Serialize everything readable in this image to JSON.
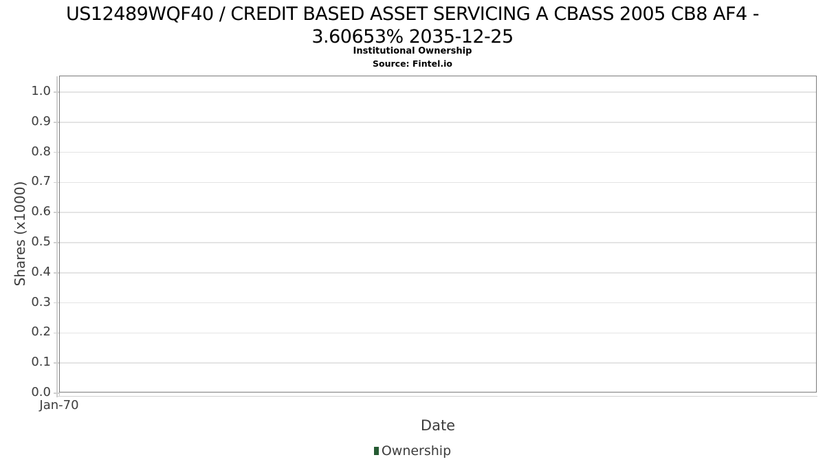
{
  "header": {
    "title": "US12489WQF40 / CREDIT BASED ASSET SERVICING A CBASS 2005 CB8 AF4 - 3.60653% 2035-12-25",
    "subtitle": "Institutional Ownership",
    "source": "Source: Fintel.io"
  },
  "chart_data": {
    "type": "line",
    "title": "US12489WQF40 / CREDIT BASED ASSET SERVICING A CBASS 2005 CB8 AF4 - 3.60653% 2035-12-25",
    "subtitle": "Institutional Ownership",
    "source": "Source: Fintel.io",
    "xlabel": "Date",
    "ylabel": "Shares (x1000)",
    "x_tick_labels": [
      "Jan-70"
    ],
    "y_ticks": [
      0.0,
      0.1,
      0.2,
      0.3,
      0.4,
      0.5,
      0.6,
      0.7,
      0.8,
      0.9,
      1.0
    ],
    "ylim": [
      0.0,
      1.05
    ],
    "grid": true,
    "legend_position": "bottom",
    "series": [
      {
        "name": "Ownership",
        "color": "#265b33",
        "marker": "square",
        "x": [],
        "values": []
      }
    ]
  },
  "colors": {
    "accent": "#265b33",
    "spine": "#7a7a7a",
    "gridline": "#e4e4e4",
    "tick": "#cfcfcf",
    "axis_text": "#3d3d3d",
    "title_text": "#000000"
  }
}
